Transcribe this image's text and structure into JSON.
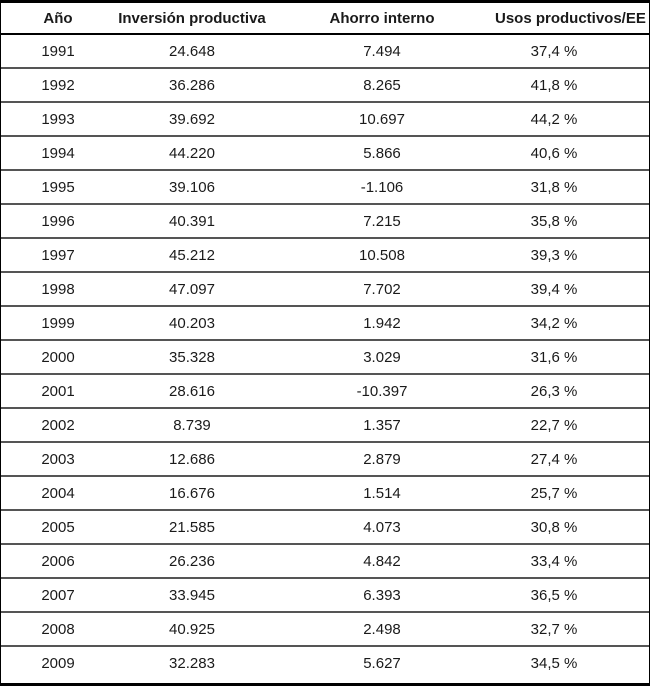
{
  "table": {
    "columns": [
      "Año",
      "Inversión productiva",
      "Ahorro interno",
      "Usos productivos/EE"
    ],
    "rows": [
      [
        "1991",
        "24.648",
        "7.494",
        "37,4 %"
      ],
      [
        "1992",
        "36.286",
        "8.265",
        "41,8 %"
      ],
      [
        "1993",
        "39.692",
        "10.697",
        "44,2 %"
      ],
      [
        "1994",
        "44.220",
        "5.866",
        "40,6 %"
      ],
      [
        "1995",
        "39.106",
        "-1.106",
        "31,8 %"
      ],
      [
        "1996",
        "40.391",
        "7.215",
        "35,8 %"
      ],
      [
        "1997",
        "45.212",
        "10.508",
        "39,3 %"
      ],
      [
        "1998",
        "47.097",
        "7.702",
        "39,4 %"
      ],
      [
        "1999",
        "40.203",
        "1.942",
        "34,2 %"
      ],
      [
        "2000",
        "35.328",
        "3.029",
        "31,6 %"
      ],
      [
        "2001",
        "28.616",
        "-10.397",
        "26,3 %"
      ],
      [
        "2002",
        "8.739",
        "1.357",
        "22,7 %"
      ],
      [
        "2003",
        "12.686",
        "2.879",
        "27,4 %"
      ],
      [
        "2004",
        "16.676",
        "1.514",
        "25,7 %"
      ],
      [
        "2005",
        "21.585",
        "4.073",
        "30,8 %"
      ],
      [
        "2006",
        "26.236",
        "4.842",
        "33,4 %"
      ],
      [
        "2007",
        "33.945",
        "6.393",
        "36,5 %"
      ],
      [
        "2008",
        "40.925",
        "2.498",
        "32,7 %"
      ],
      [
        "2009",
        "32.283",
        "5.627",
        "34,5 %"
      ]
    ]
  },
  "colors": {
    "outer_border": "#000000",
    "header_divider": "#000000",
    "row_divider": "#555555",
    "text": "#1a1a1a",
    "background": "#ffffff"
  },
  "chart_data": {
    "type": "table",
    "title": "",
    "categories": [
      1991,
      1992,
      1993,
      1994,
      1995,
      1996,
      1997,
      1998,
      1999,
      2000,
      2001,
      2002,
      2003,
      2004,
      2005,
      2006,
      2007,
      2008,
      2009
    ],
    "categories_label": "Año",
    "series": [
      {
        "name": "Inversión productiva",
        "values": [
          24648,
          36286,
          39692,
          44220,
          39106,
          40391,
          45212,
          47097,
          40203,
          35328,
          28616,
          8739,
          12686,
          16676,
          21585,
          26236,
          33945,
          40925,
          32283
        ]
      },
      {
        "name": "Ahorro interno",
        "values": [
          7494,
          8265,
          10697,
          5866,
          -1106,
          7215,
          10508,
          7702,
          1942,
          3029,
          -10397,
          1357,
          2879,
          1514,
          4073,
          4842,
          6393,
          2498,
          5627
        ]
      },
      {
        "name": "Usos productivos/EE (%)",
        "values": [
          37.4,
          41.8,
          44.2,
          40.6,
          31.8,
          35.8,
          39.3,
          39.4,
          34.2,
          31.6,
          26.3,
          22.7,
          27.4,
          25.7,
          30.8,
          33.4,
          36.5,
          32.7,
          34.5
        ]
      }
    ],
    "layout": {
      "grid": "horizontal-rules-only",
      "legend": "none"
    }
  }
}
